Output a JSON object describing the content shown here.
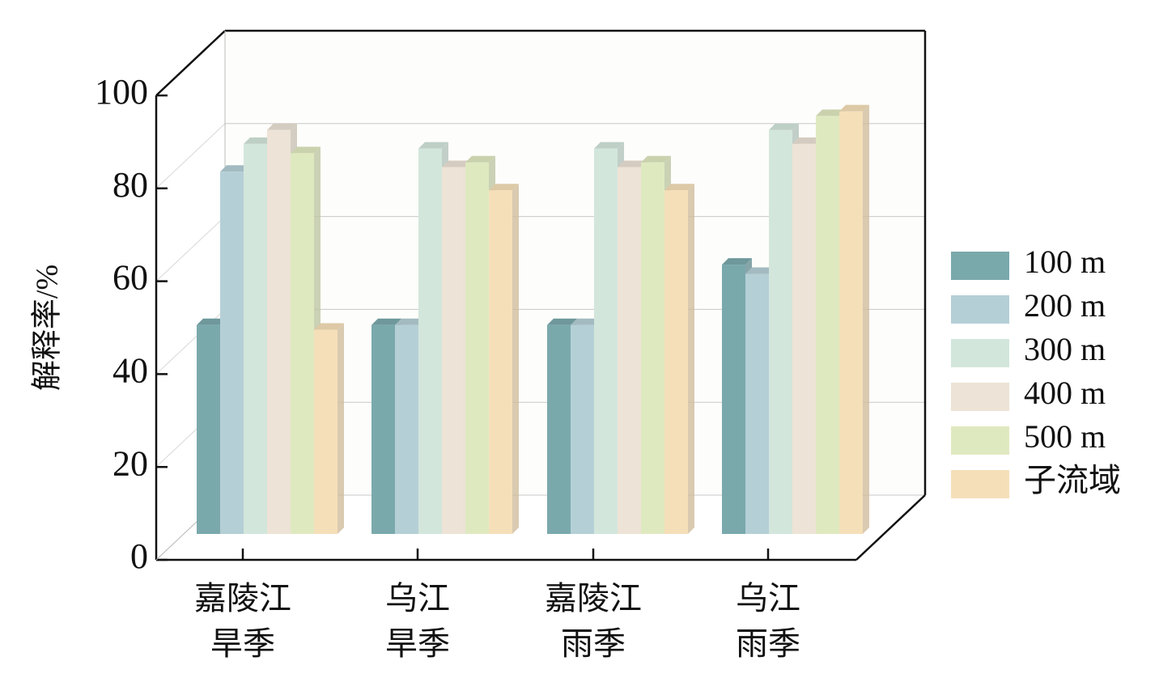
{
  "chart_data": {
    "type": "bar3d",
    "y_label": "解释率/%",
    "categories": [
      "嘉陵江\n旱季",
      "乌江\n旱季",
      "嘉陵江\n雨季",
      "乌江\n雨季"
    ],
    "series": [
      {
        "name": "100 m",
        "color": "#7aa9ac",
        "values": [
          45,
          45,
          45,
          58
        ]
      },
      {
        "name": "200 m",
        "color": "#b5cfd6",
        "values": [
          78,
          45,
          45,
          56
        ]
      },
      {
        "name": "300 m",
        "color": "#d3e6dc",
        "values": [
          84,
          83,
          83,
          87
        ]
      },
      {
        "name": "400 m",
        "color": "#ede3d6",
        "values": [
          87,
          79,
          79,
          84
        ]
      },
      {
        "name": "500 m",
        "color": "#dfe9c0",
        "values": [
          82,
          80,
          80,
          90
        ]
      },
      {
        "name": "子流域",
        "color": "#f5dfb9",
        "values": [
          44,
          74,
          74,
          91
        ]
      }
    ],
    "ylim": [
      0,
      100
    ],
    "yticks": [
      0,
      20,
      40,
      60,
      80,
      100
    ],
    "grid": true,
    "legend": "right"
  }
}
